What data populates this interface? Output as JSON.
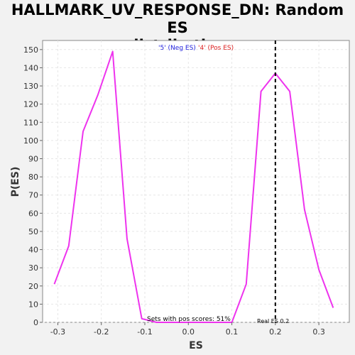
{
  "chart_data": {
    "type": "line",
    "title_line1": "HALLMARK_UV_RESPONSE_DN: Random ES",
    "title_line2": "distribution",
    "xlabel": "ES",
    "ylabel": "P(ES)",
    "xlim": [
      -0.335,
      0.37
    ],
    "ylim": [
      0,
      155
    ],
    "x_ticks": [
      -0.3,
      -0.2,
      -0.1,
      0.0,
      0.1,
      0.2,
      0.3
    ],
    "x_tick_labels": [
      "-0.3",
      "-0.2",
      "-0.1",
      "0.0",
      "0.1",
      "0.2",
      "0.3"
    ],
    "y_ticks": [
      0,
      10,
      20,
      30,
      40,
      50,
      60,
      70,
      80,
      90,
      100,
      110,
      120,
      130,
      140,
      150
    ],
    "y_tick_labels": [
      "0",
      "10",
      "20",
      "30",
      "40",
      "50",
      "60",
      "70",
      "80",
      "90",
      "100",
      "110",
      "120",
      "130",
      "140",
      "150"
    ],
    "grid": true,
    "series": [
      {
        "color": "#ee33ee",
        "x": [
          -0.308,
          -0.275,
          -0.242,
          -0.208,
          -0.174,
          -0.141,
          -0.107,
          -0.073,
          0.1,
          0.133,
          0.167,
          0.2,
          0.233,
          0.267,
          0.3,
          0.333
        ],
        "y": [
          21,
          42,
          105,
          125,
          149,
          46,
          2,
          0,
          0,
          21,
          127,
          137,
          127,
          62,
          29,
          8
        ]
      }
    ],
    "legend": [
      {
        "text": "'5' (Neg ES)",
        "color": "#2020dd"
      },
      {
        "text": "'4' (Pos ES)",
        "color": "#dd2020"
      }
    ],
    "legend_placement": "top-center",
    "annotations": [
      {
        "text": "Sets with pos scores: 51%"
      },
      {
        "text": "Real ES 0.2"
      }
    ],
    "real_es_line": {
      "x": 0.2,
      "color": "#000000"
    }
  }
}
